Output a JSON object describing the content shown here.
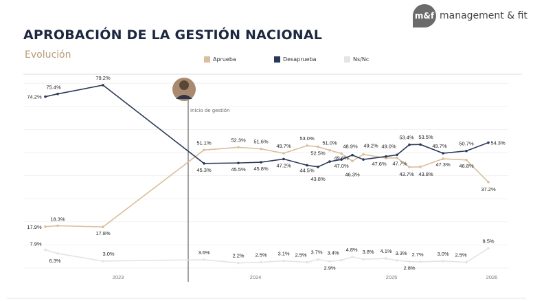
{
  "header": {
    "title": "APROBACIÓN DE LA GESTIÓN NACIONAL",
    "subtitle": "Evolución",
    "logo_mark": "m&f",
    "logo_text": "management & fit"
  },
  "annotation": "Inicio de gestión",
  "colors": {
    "aprueba": "#d9bf9c",
    "desaprueba": "#2a3858",
    "nsnc": "#e4e4e4"
  },
  "chart_data": {
    "type": "line",
    "title": "APROBACIÓN DE LA GESTIÓN NACIONAL",
    "subtitle": "Evolución",
    "legend_position": "top",
    "x_ticks": [
      "2023",
      "2024",
      "2025",
      "2026"
    ],
    "ylim": [
      0,
      80
    ],
    "grid": true,
    "series": [
      {
        "name": "Aprueba",
        "values": [
          17.9,
          18.3,
          17.8,
          51.1,
          52.3,
          51.6,
          49.7,
          53.0,
          52.5,
          51.0,
          49.6,
          46.3,
          49.2,
          47.6,
          47.7,
          43.7,
          43.8,
          47.3,
          46.8,
          37.2
        ]
      },
      {
        "name": "Desaprueba",
        "values": [
          74.2,
          75.4,
          79.2,
          45.3,
          45.5,
          45.8,
          47.2,
          44.5,
          43.8,
          46.1,
          47.0,
          48.9,
          47.0,
          48.3,
          49.0,
          53.4,
          53.5,
          49.7,
          50.7,
          54.3
        ]
      },
      {
        "name": "Ns/Nc",
        "values": [
          7.9,
          6.3,
          3.0,
          3.6,
          2.2,
          2.5,
          3.1,
          2.5,
          3.7,
          2.9,
          3.4,
          4.8,
          3.8,
          4.1,
          3.3,
          2.8,
          2.7,
          3.0,
          2.5,
          8.5
        ]
      }
    ],
    "unlabeled_points": {
      "Desaprueba": [
        9,
        12,
        13
      ]
    }
  }
}
